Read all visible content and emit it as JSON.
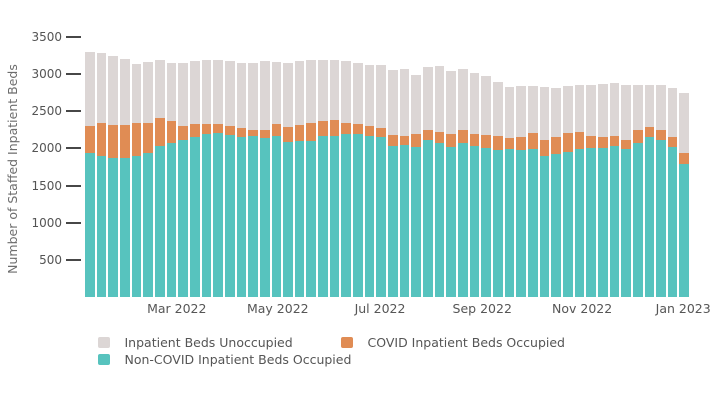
{
  "figure": {
    "background": "#ffffff",
    "text_color": "#555555"
  },
  "chart_data": {
    "type": "bar",
    "stacked": true,
    "title": "",
    "xlabel": "",
    "ylabel": "Number of Staffed Inpatient Beds",
    "ylim": [
      0,
      3500
    ],
    "yticks": [
      500,
      1000,
      1500,
      2000,
      2500,
      3000,
      3500
    ],
    "grid": false,
    "n_bars": 52,
    "bar_period": "weekly",
    "x_ticks": [
      {
        "label": "Mar 2022",
        "pos": 8.4
      },
      {
        "label": "May 2022",
        "pos": 17.1
      },
      {
        "label": "Jul 2022",
        "pos": 25.9
      },
      {
        "label": "Sep 2022",
        "pos": 34.7
      },
      {
        "label": "Nov 2022",
        "pos": 43.3
      },
      {
        "label": "Jan 2023",
        "pos": 52.0
      }
    ],
    "series": [
      {
        "key": "noncovid-occupied",
        "name": "Non-COVID Inpatient Beds Occupied",
        "color": "#57C3BE",
        "values": [
          1940,
          1900,
          1870,
          1875,
          1900,
          1935,
          2035,
          2070,
          2115,
          2160,
          2195,
          2205,
          2180,
          2160,
          2165,
          2135,
          2170,
          2090,
          2100,
          2105,
          2165,
          2170,
          2190,
          2195,
          2165,
          2160,
          2030,
          2045,
          2025,
          2115,
          2075,
          2015,
          2080,
          2035,
          2010,
          1980,
          1990,
          1980,
          1990,
          1900,
          1925,
          1955,
          1990,
          2000,
          2000,
          2035,
          1990,
          2070,
          2150,
          2120,
          2015,
          1790
        ]
      },
      {
        "key": "covid-occupied",
        "name": "COVID Inpatient Beds Occupied",
        "color": "#E08C54",
        "values": [
          360,
          440,
          440,
          440,
          440,
          410,
          370,
          300,
          185,
          165,
          135,
          125,
          125,
          110,
          80,
          120,
          155,
          200,
          215,
          240,
          205,
          210,
          155,
          140,
          135,
          120,
          150,
          120,
          170,
          140,
          150,
          175,
          165,
          155,
          170,
          185,
          145,
          170,
          215,
          220,
          225,
          250,
          235,
          165,
          150,
          135,
          125,
          185,
          135,
          125,
          135,
          145
        ]
      },
      {
        "key": "unoccupied",
        "name": "Inpatient Beds Unoccupied",
        "color": "#DCD6D5",
        "values": [
          1000,
          940,
          930,
          895,
          795,
          820,
          790,
          775,
          850,
          855,
          860,
          865,
          875,
          885,
          900,
          920,
          840,
          860,
          865,
          850,
          820,
          810,
          830,
          820,
          830,
          850,
          875,
          900,
          790,
          845,
          885,
          850,
          830,
          820,
          795,
          730,
          695,
          695,
          635,
          710,
          660,
          640,
          625,
          685,
          715,
          715,
          735,
          605,
          575,
          605,
          670,
          805
        ]
      }
    ],
    "legend_position": "bottom",
    "legend": [
      {
        "key": "unoccupied",
        "label": "Inpatient Beds Unoccupied",
        "color": "#DCD6D5"
      },
      {
        "key": "covid-occupied",
        "label": "COVID Inpatient Beds Occupied",
        "color": "#E08C54"
      },
      {
        "key": "noncovid-occupied",
        "label": "Non-COVID Inpatient Beds Occupied",
        "color": "#57C3BE"
      }
    ],
    "axis": {
      "tick_dash_color": "#474747",
      "tick_label_color": "#545454",
      "axis_title_color": "#6d6d6d"
    }
  }
}
